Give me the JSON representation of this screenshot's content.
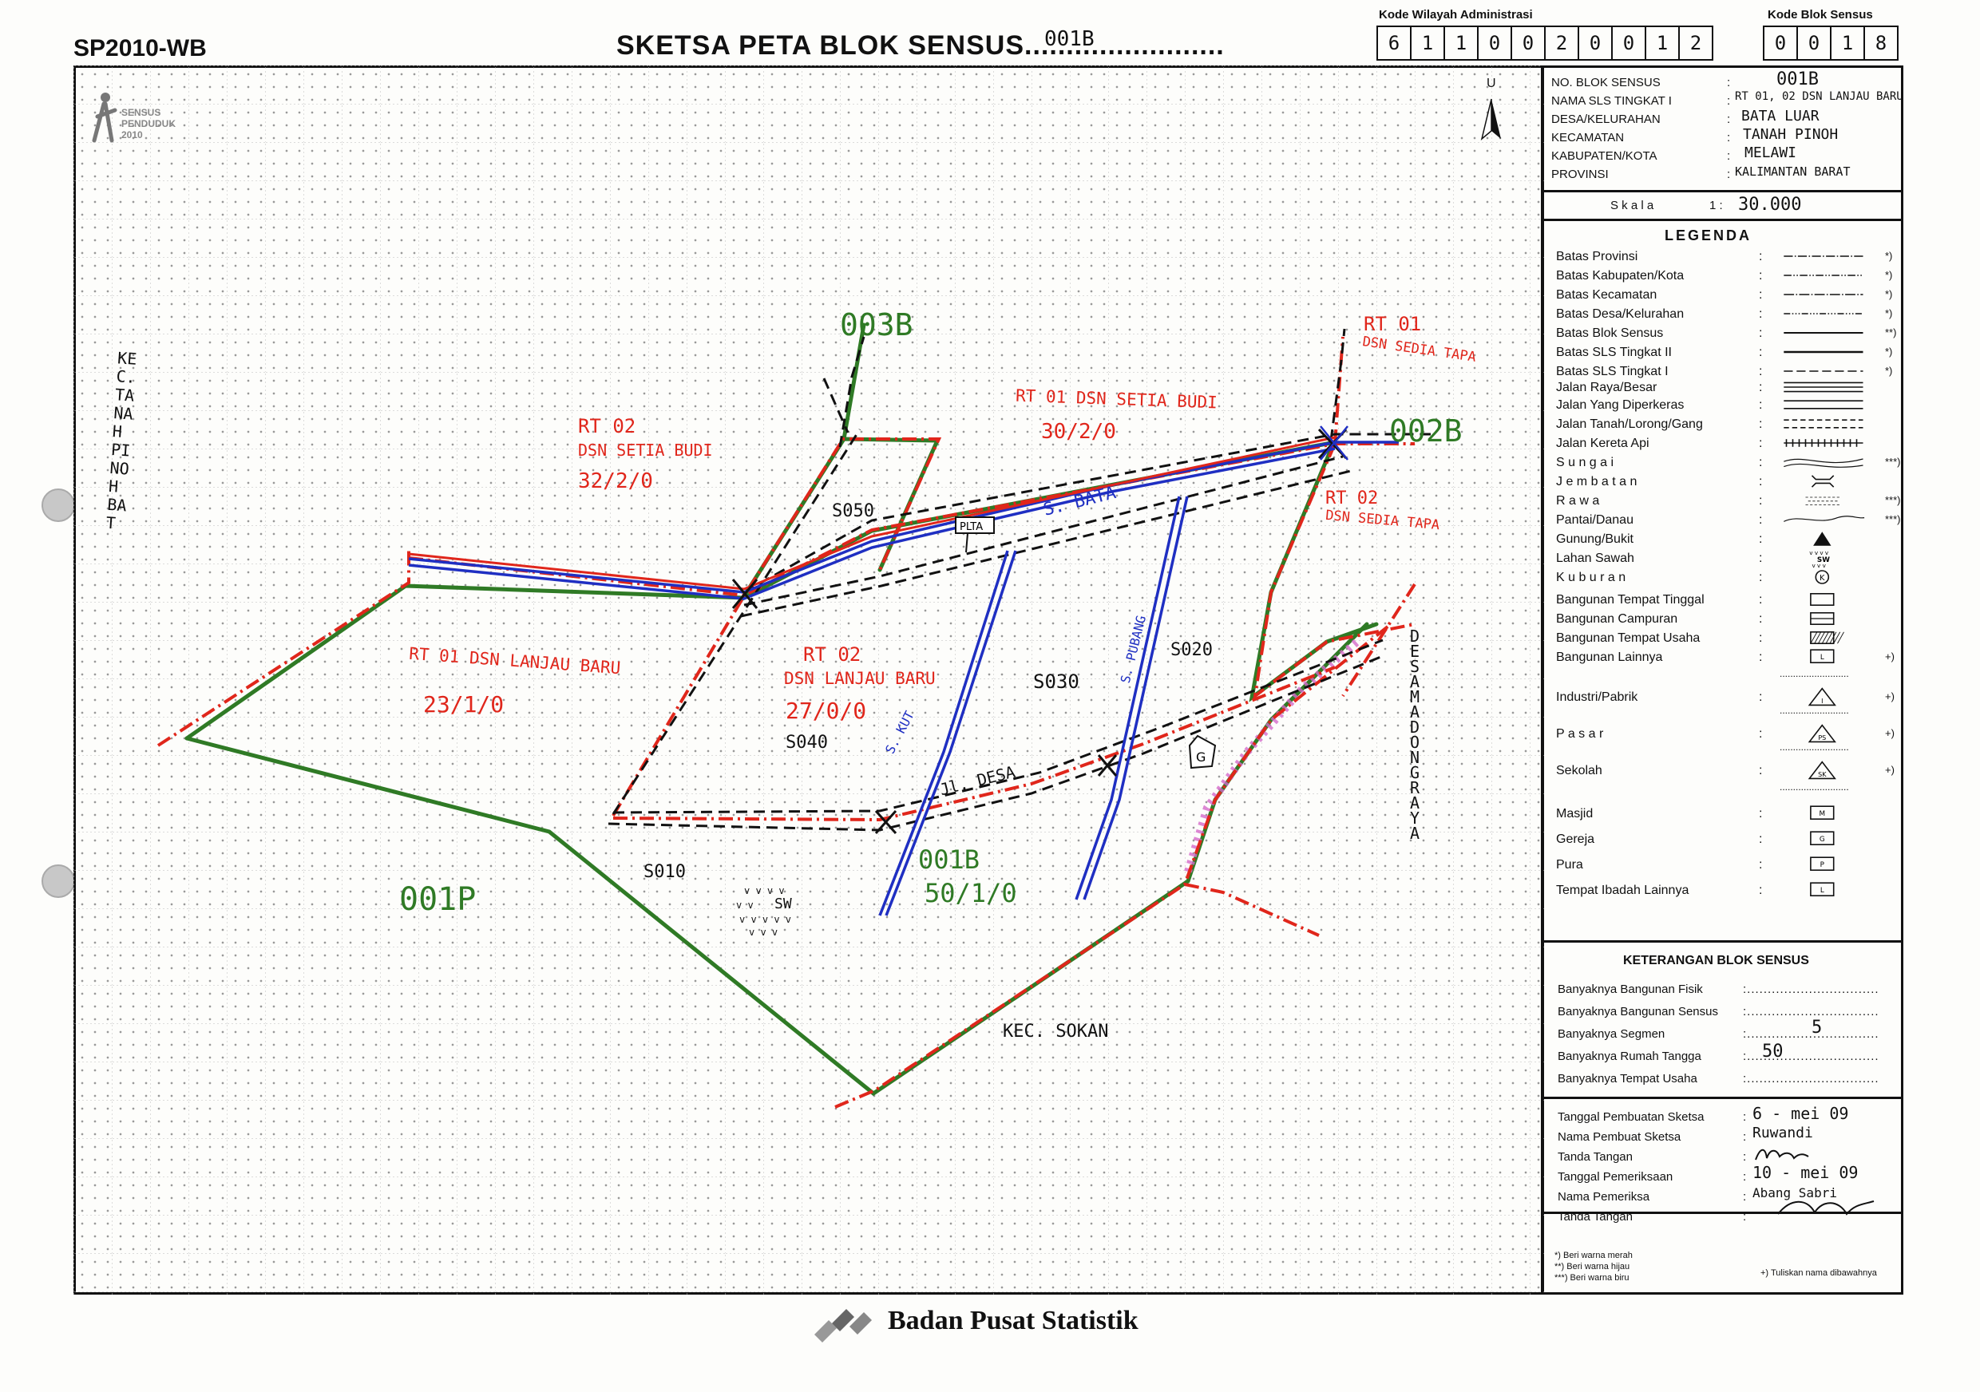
{
  "header": {
    "form_code": "SP2010-WB",
    "title": "SKETSA PETA BLOK SENSUS",
    "title_dots": "........................",
    "title_value": "001B",
    "kode_wilayah_label": "Kode Wilayah Administrasi",
    "kode_wilayah_digits": [
      "6",
      "1",
      "1",
      "0",
      "0",
      "2",
      "0",
      "0",
      "1",
      "2"
    ],
    "kode_blok_label": "Kode Blok Sensus",
    "kode_blok_digits": [
      "0",
      "0",
      "1",
      "8"
    ]
  },
  "logo": {
    "line1": "SENSUS",
    "line2": "PENDUDUK",
    "line3": "2010"
  },
  "north": "U",
  "info": {
    "rows": [
      {
        "label": "NO. BLOK SENSUS",
        "value": "001B"
      },
      {
        "label": "NAMA SLS TINGKAT I",
        "value": "RT 01, 02 DSN LANJAU BARU"
      },
      {
        "label": "DESA/KELURAHAN",
        "value": "BATA LUAR"
      },
      {
        "label": "KECAMATAN",
        "value": "TANAH PINOH"
      },
      {
        "label": "KABUPATEN/KOTA",
        "value": "MELAWI"
      },
      {
        "label": "PROVINSI",
        "value": "KALIMANTAN BARAT"
      }
    ],
    "scale_label": "S k a l a",
    "scale_prefix": "1 :",
    "scale_value": "30.000"
  },
  "legend": {
    "title": "LEGENDA",
    "items": [
      {
        "label": "Batas Provinsi",
        "note": "*)"
      },
      {
        "label": "Batas Kabupaten/Kota",
        "note": "*)"
      },
      {
        "label": "Batas Kecamatan",
        "note": "*)"
      },
      {
        "label": "Batas Desa/Kelurahan",
        "note": "*)"
      },
      {
        "label": "Batas Blok Sensus",
        "note": "**)"
      },
      {
        "label": "Batas SLS Tingkat II",
        "note": "*)"
      },
      {
        "label": "Batas SLS Tingkat I",
        "note": "*)"
      },
      {
        "label": "Jalan Raya/Besar",
        "note": ""
      },
      {
        "label": "Jalan Yang Diperkeras",
        "note": ""
      },
      {
        "label": "Jalan Tanah/Lorong/Gang",
        "note": ""
      },
      {
        "label": "Jalan Kereta Api",
        "note": ""
      },
      {
        "label": "S u n g a i",
        "note": "***)"
      },
      {
        "label": "J e m b a t a n",
        "note": ""
      },
      {
        "label": "R a w a",
        "note": "***)"
      },
      {
        "label": "Pantai/Danau",
        "note": "***)"
      },
      {
        "label": "Gunung/Bukit",
        "note": ""
      },
      {
        "label": "Lahan Sawah",
        "note": ""
      },
      {
        "label": "K u b u r a n",
        "note": ""
      },
      {
        "label": "Bangunan Tempat Tinggal",
        "note": ""
      },
      {
        "label": "Bangunan Campuran",
        "note": ""
      },
      {
        "label": "Bangunan Tempat Usaha",
        "note": ""
      },
      {
        "label": "Bangunan Lainnya",
        "note": "+)"
      },
      {
        "label": "Industri/Pabrik",
        "note": "+)"
      },
      {
        "label": "P a s a r",
        "note": "+)"
      },
      {
        "label": "Sekolah",
        "note": "+)"
      },
      {
        "label": "Masjid",
        "note": ""
      },
      {
        "label": "Gereja",
        "note": ""
      },
      {
        "label": "Pura",
        "note": ""
      },
      {
        "label": "Tempat Ibadah Lainnya",
        "note": ""
      }
    ],
    "sym_text": {
      "sawah": "SW",
      "kuburan": "K",
      "lainnya": "L",
      "industri": "I",
      "pasar": "PS",
      "sekolah": "SK",
      "masjid": "M",
      "gereja": "G",
      "pura": "P",
      "ibadah": "L"
    }
  },
  "keterangan": {
    "title": "KETERANGAN BLOK SENSUS",
    "rows": [
      {
        "label": "Banyaknya Bangunan Fisik",
        "value": ""
      },
      {
        "label": "Banyaknya Bangunan Sensus",
        "value": ""
      },
      {
        "label": "Banyaknya Segmen",
        "value": "5"
      },
      {
        "label": "Banyaknya Rumah Tangga",
        "value": "50"
      },
      {
        "label": "Banyaknya Tempat Usaha",
        "value": ""
      }
    ]
  },
  "pembuatan": {
    "rows": [
      {
        "label": "Tanggal Pembuatan Sketsa",
        "value": "6 - mei 09"
      },
      {
        "label": "Nama Pembuat Sketsa",
        "value": "Ruwandi"
      },
      {
        "label": "Tanda Tangan",
        "value": ""
      },
      {
        "label": "Tanggal Pemeriksaan",
        "value": "10 - mei 09"
      },
      {
        "label": "Nama Pemeriksa",
        "value": "Abang Sabri"
      },
      {
        "label": "Tanda Tangan",
        "value": ""
      }
    ]
  },
  "footnotes": {
    "f1": "*)   Beri warna merah",
    "f2": "**)  Beri warna hijau",
    "f3": "***) Beri warna biru",
    "f4": "+) Tuliskan nama dibawahnya"
  },
  "footer": {
    "org": "Badan Pusat Statistik"
  },
  "map_labels": {
    "kec_left": "KEC. TANAH PINOH BAT",
    "kec_bottom": "KEC. SOKAN",
    "desa_right": "DESA MADONG RAYA",
    "bs_003b": "003B",
    "bs_002b": "002B",
    "bs_001p": "001P",
    "bs_001b": "001B",
    "bs_001b_count": "50/1/0",
    "rt02_setia_1": "RT 02",
    "rt02_setia_2": "DSN SETIA BUDI",
    "rt02_setia_3": "32/2/0",
    "rt01_setia_1": "RT 01  DSN SETIA BUDI",
    "rt01_setia_2": "30/2/0",
    "rt01_sedia_1": "RT 01",
    "rt01_sedia_2": "DSN SEDIA TAPA",
    "rt02_sedia_1": "RT 02",
    "rt02_sedia_2": "DSN SEDIA TAPA",
    "rt01_lanjau_1": "RT 01  DSN LANJAU BARU",
    "rt01_lanjau_2": "23/1/0",
    "rt02_lanjau_1": "RT 02",
    "rt02_lanjau_2": "DSN LANJAU BARU",
    "rt02_lanjau_3": "27/0/0",
    "s010": "S010",
    "s020": "S020",
    "s030": "S030",
    "s040": "S040",
    "s050": "S050",
    "river_bata": "S. BATA",
    "river_kut": "S. KUT",
    "river_pubang": "S. PUBANG",
    "road_desa": "Jl. DESA",
    "plta": "PLTA",
    "sawah": "SW",
    "gereja_mark": "G"
  },
  "colors": {
    "red": "#e0261b",
    "green": "#2f7a25",
    "blue": "#1f2fc2",
    "black": "#111111",
    "magenta": "#d46acb"
  }
}
